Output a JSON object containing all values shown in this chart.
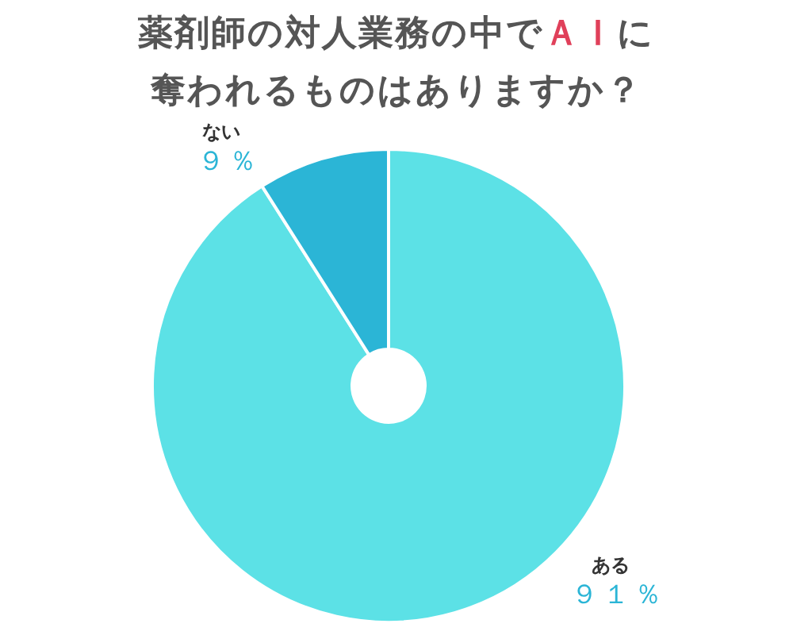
{
  "chart_data": {
    "type": "donut",
    "title": "薬剤師の対人業務の中でＡＩに奪われるものはありますか？",
    "categories": [
      "ある",
      "ない"
    ],
    "values": [
      91,
      9
    ],
    "colors": [
      "#5ce1e6",
      "#2bb5d6"
    ],
    "value_labels": [
      "９１％",
      "９％"
    ]
  }
}
